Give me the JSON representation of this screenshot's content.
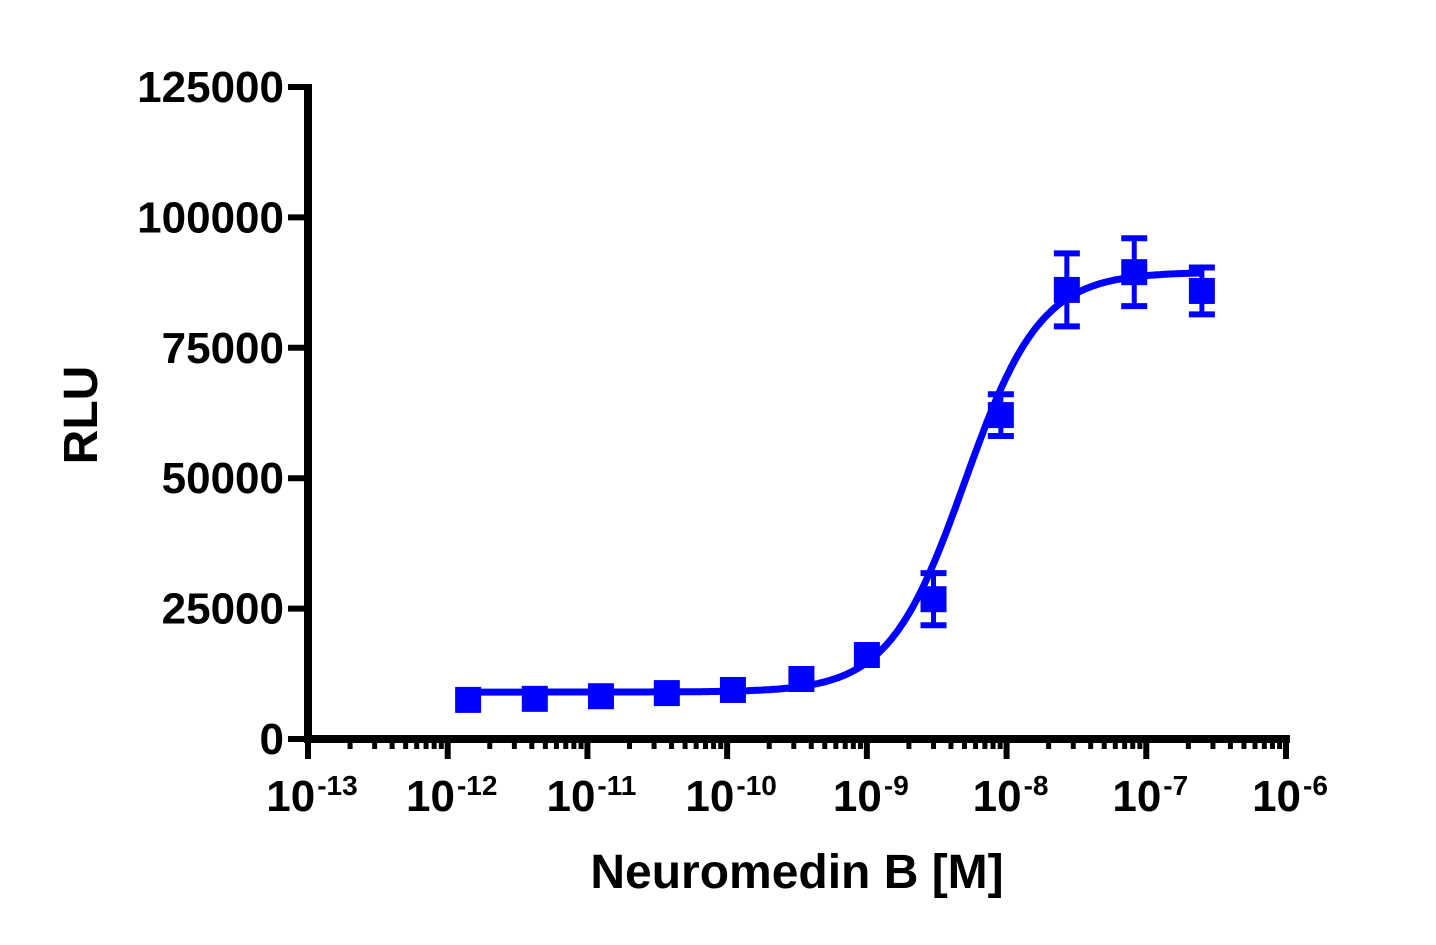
{
  "chart_data": {
    "type": "scatter",
    "title": "",
    "xlabel": "Neuromedin B [M]",
    "ylabel": "RLU",
    "xscale": "log",
    "xlim": [
      1e-13,
      1e-06
    ],
    "ylim": [
      0,
      125000
    ],
    "grid": false,
    "legend": null,
    "color": "#0000ff",
    "x_ticks": [
      {
        "base": "10",
        "exp": "-13"
      },
      {
        "base": "10",
        "exp": "-12"
      },
      {
        "base": "10",
        "exp": "-11"
      },
      {
        "base": "10",
        "exp": "-10"
      },
      {
        "base": "10",
        "exp": "-9"
      },
      {
        "base": "10",
        "exp": "-8"
      },
      {
        "base": "10",
        "exp": "-7"
      },
      {
        "base": "10",
        "exp": "-6"
      }
    ],
    "y_ticks": [
      "0",
      "25000",
      "50000",
      "75000",
      "100000",
      "125000"
    ],
    "series": [
      {
        "name": "Neuromedin B",
        "marker": "square",
        "fit": "sigmoidal dose-response (4PL)",
        "x": [
          1.4e-12,
          4.2e-12,
          1.25e-11,
          3.7e-11,
          1.1e-10,
          3.4e-10,
          1e-09,
          3e-09,
          9.1e-09,
          2.7e-08,
          8.2e-08,
          2.5e-07
        ],
        "y": [
          7500,
          7700,
          8200,
          8800,
          9400,
          11500,
          16100,
          26800,
          62100,
          86100,
          89500,
          85900
        ],
        "error": [
          500,
          500,
          500,
          500,
          600,
          700,
          1000,
          5000,
          4000,
          7000,
          6500,
          4500
        ]
      }
    ],
    "fit_params": {
      "bottom": 9000,
      "top": 89500,
      "logEC50": -8.3,
      "hill": 1.6
    }
  }
}
